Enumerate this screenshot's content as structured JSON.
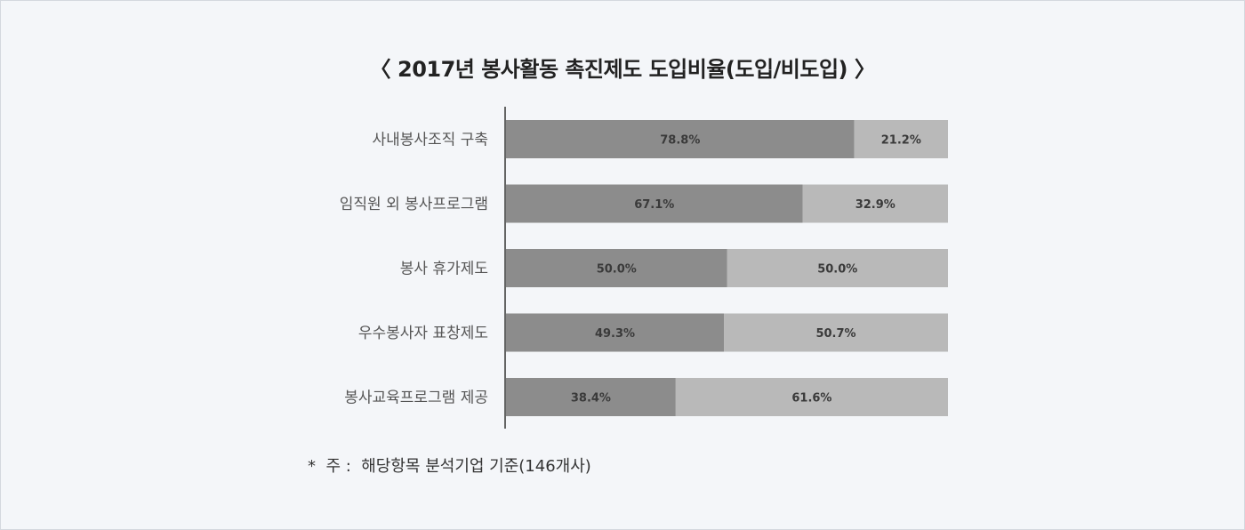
{
  "title": "〈 2017년 봉사활동 촉진제도 도입비율(도입/비도입) 〉",
  "footnote": "*  주 :  해당항목 분석기업 기준(146개사)",
  "colors": {
    "adopted": "#8c8c8c",
    "not_adopted": "#b9b9b9",
    "axis": "#333333"
  },
  "chart_data": {
    "type": "bar",
    "orientation": "horizontal",
    "stacked": true,
    "categories": [
      "사내봉사조직 구축",
      "임직원 외 봉사프로그램",
      "봉사 휴가제도",
      "우수봉사자 표창제도",
      "봉사교육프로그램 제공"
    ],
    "series": [
      {
        "values": [
          78.8,
          67.1,
          50.0,
          49.3,
          38.4
        ],
        "labels": [
          "78.8%",
          "67.1%",
          "50.0%",
          "49.3%",
          "38.4%"
        ]
      },
      {
        "values": [
          21.2,
          32.9,
          50.0,
          50.7,
          61.6
        ],
        "labels": [
          "21.2%",
          "32.9%",
          "50.0%",
          "50.7%",
          "61.6%"
        ]
      }
    ],
    "xlim": [
      0,
      100
    ],
    "unit": "%",
    "grid": false,
    "legend": "none",
    "title": "〈 2017년 봉사활동 촉진제도 도입비율(도입/비도입) 〉"
  }
}
